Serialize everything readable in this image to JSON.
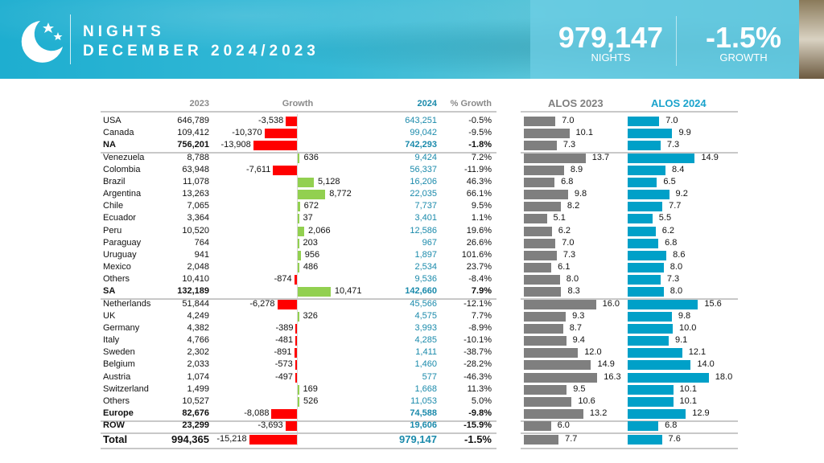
{
  "header": {
    "title_line1": "NIGHTS",
    "title_line2": "DECEMBER 2024/2023",
    "nights_value": "979,147",
    "nights_label": "NIGHTS",
    "growth_value": "-1.5%",
    "growth_label": "GROWTH"
  },
  "columns": {
    "y2023": "2023",
    "growth": "Growth",
    "y2024": "2024",
    "pct": "% Growth",
    "alos2023": "ALOS 2023",
    "alos2024": "ALOS 2024"
  },
  "colors": {
    "negative": "#ff0000",
    "positive": "#92d050",
    "alos2023": "#7f7f7f",
    "alos2024": "#00a0c8",
    "y2024_text": "#1a8aab"
  },
  "rows": [
    {
      "name": "USA",
      "y2023": "646,789",
      "growth": "-3,538",
      "g": -3538,
      "y2024": "643,251",
      "pct": "-0.5%",
      "a23": "7.0",
      "a24": "7.0"
    },
    {
      "name": "Canada",
      "y2023": "109,412",
      "growth": "-10,370",
      "g": -10370,
      "y2024": "99,042",
      "pct": "-9.5%",
      "a23": "10.1",
      "a24": "9.9"
    },
    {
      "name": "NA",
      "y2023": "756,201",
      "growth": "-13,908",
      "g": -13908,
      "y2024": "742,293",
      "pct": "-1.8%",
      "a23": "7.3",
      "a24": "7.3",
      "bold": true,
      "sep": true
    },
    {
      "name": "Venezuela",
      "y2023": "8,788",
      "growth": "636",
      "g": 636,
      "y2024": "9,424",
      "pct": "7.2%",
      "a23": "13.7",
      "a24": "14.9"
    },
    {
      "name": "Colombia",
      "y2023": "63,948",
      "growth": "-7,611",
      "g": -7611,
      "y2024": "56,337",
      "pct": "-11.9%",
      "a23": "8.9",
      "a24": "8.4"
    },
    {
      "name": "Brazil",
      "y2023": "11,078",
      "growth": "5,128",
      "g": 5128,
      "y2024": "16,206",
      "pct": "46.3%",
      "a23": "6.8",
      "a24": "6.5"
    },
    {
      "name": "Argentina",
      "y2023": "13,263",
      "growth": "8,772",
      "g": 8772,
      "y2024": "22,035",
      "pct": "66.1%",
      "a23": "9.8",
      "a24": "9.2"
    },
    {
      "name": "Chile",
      "y2023": "7,065",
      "growth": "672",
      "g": 672,
      "y2024": "7,737",
      "pct": "9.5%",
      "a23": "8.2",
      "a24": "7.7"
    },
    {
      "name": "Ecuador",
      "y2023": "3,364",
      "growth": "37",
      "g": 37,
      "y2024": "3,401",
      "pct": "1.1%",
      "a23": "5.1",
      "a24": "5.5"
    },
    {
      "name": "Peru",
      "y2023": "10,520",
      "growth": "2,066",
      "g": 2066,
      "y2024": "12,586",
      "pct": "19.6%",
      "a23": "6.2",
      "a24": "6.2"
    },
    {
      "name": "Paraguay",
      "y2023": "764",
      "growth": "203",
      "g": 203,
      "y2024": "967",
      "pct": "26.6%",
      "a23": "7.0",
      "a24": "6.8"
    },
    {
      "name": "Uruguay",
      "y2023": "941",
      "growth": "956",
      "g": 956,
      "y2024": "1,897",
      "pct": "101.6%",
      "a23": "7.3",
      "a24": "8.6"
    },
    {
      "name": "Mexico",
      "y2023": "2,048",
      "growth": "486",
      "g": 486,
      "y2024": "2,534",
      "pct": "23.7%",
      "a23": "6.1",
      "a24": "8.0"
    },
    {
      "name": "Others",
      "y2023": "10,410",
      "growth": "-874",
      "g": -874,
      "y2024": "9,536",
      "pct": "-8.4%",
      "a23": "8.0",
      "a24": "7.3"
    },
    {
      "name": "SA",
      "y2023": "132,189",
      "growth": "10,471",
      "g": 10471,
      "y2024": "142,660",
      "pct": "7.9%",
      "a23": "8.3",
      "a24": "8.0",
      "bold": true,
      "sep": true
    },
    {
      "name": "Netherlands",
      "y2023": "51,844",
      "growth": "-6,278",
      "g": -6278,
      "y2024": "45,566",
      "pct": "-12.1%",
      "a23": "16.0",
      "a24": "15.6"
    },
    {
      "name": "UK",
      "y2023": "4,249",
      "growth": "326",
      "g": 326,
      "y2024": "4,575",
      "pct": "7.7%",
      "a23": "9.3",
      "a24": "9.8"
    },
    {
      "name": "Germany",
      "y2023": "4,382",
      "growth": "-389",
      "g": -389,
      "y2024": "3,993",
      "pct": "-8.9%",
      "a23": "8.7",
      "a24": "10.0"
    },
    {
      "name": "Italy",
      "y2023": "4,766",
      "growth": "-481",
      "g": -481,
      "y2024": "4,285",
      "pct": "-10.1%",
      "a23": "9.4",
      "a24": "9.1"
    },
    {
      "name": "Sweden",
      "y2023": "2,302",
      "growth": "-891",
      "g": -891,
      "y2024": "1,411",
      "pct": "-38.7%",
      "a23": "12.0",
      "a24": "12.1"
    },
    {
      "name": "Belgium",
      "y2023": "2,033",
      "growth": "-573",
      "g": -573,
      "y2024": "1,460",
      "pct": "-28.2%",
      "a23": "14.9",
      "a24": "14.0"
    },
    {
      "name": "Austria",
      "y2023": "1,074",
      "growth": "-497",
      "g": -497,
      "y2024": "577",
      "pct": "-46.3%",
      "a23": "16.3",
      "a24": "18.0"
    },
    {
      "name": "Switzerland",
      "y2023": "1,499",
      "growth": "169",
      "g": 169,
      "y2024": "1,668",
      "pct": "11.3%",
      "a23": "9.5",
      "a24": "10.1"
    },
    {
      "name": "Others",
      "y2023": "10,527",
      "growth": "526",
      "g": 526,
      "y2024": "11,053",
      "pct": "5.0%",
      "a23": "10.6",
      "a24": "10.1"
    },
    {
      "name": "Europe",
      "y2023": "82,676",
      "growth": "-8,088",
      "g": -8088,
      "y2024": "74,588",
      "pct": "-9.8%",
      "a23": "13.2",
      "a24": "12.9",
      "bold": true,
      "sep": true
    },
    {
      "name": "ROW",
      "y2023": "23,299",
      "growth": "-3,693",
      "g": -3693,
      "y2024": "19,606",
      "pct": "-15.9%",
      "a23": "6.0",
      "a24": "6.8",
      "bold": true,
      "sep": true
    },
    {
      "name": "Total",
      "y2023": "994,365",
      "growth": "-15,218",
      "g": -15218,
      "y2024": "979,147",
      "pct": "-1.5%",
      "a23": "7.7",
      "a24": "7.6",
      "bold": true,
      "total": true,
      "sep": true
    }
  ]
}
